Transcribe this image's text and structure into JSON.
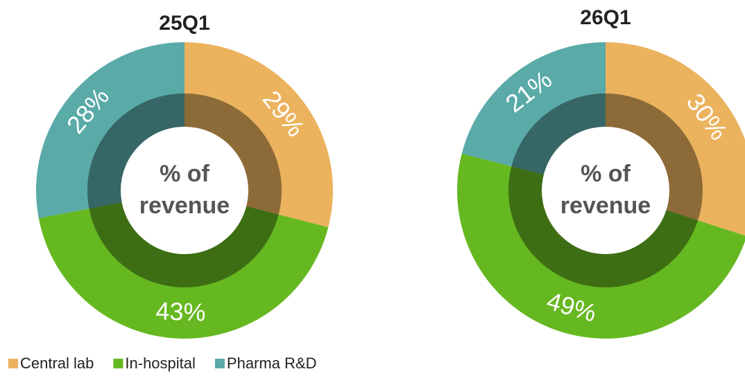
{
  "chart_data": [
    {
      "type": "donut",
      "title": "25Q1",
      "center_label": "% of revenue",
      "categories": [
        "Central lab",
        "In-hospital",
        "Pharma R&D"
      ],
      "values": [
        29,
        43,
        28
      ],
      "value_labels": [
        "29%",
        "43%",
        "28%"
      ],
      "colors": [
        "#ebb35e",
        "#66b821",
        "#5aaaa8"
      ]
    },
    {
      "type": "donut",
      "title": "26Q1",
      "center_label": "% of revenue",
      "categories": [
        "Central lab",
        "In-hospital",
        "Pharma R&D"
      ],
      "values": [
        30,
        49,
        21
      ],
      "value_labels": [
        "30%",
        "49%",
        "21%"
      ],
      "colors": [
        "#ebb35e",
        "#66b821",
        "#5aaaa8"
      ]
    }
  ]
}
